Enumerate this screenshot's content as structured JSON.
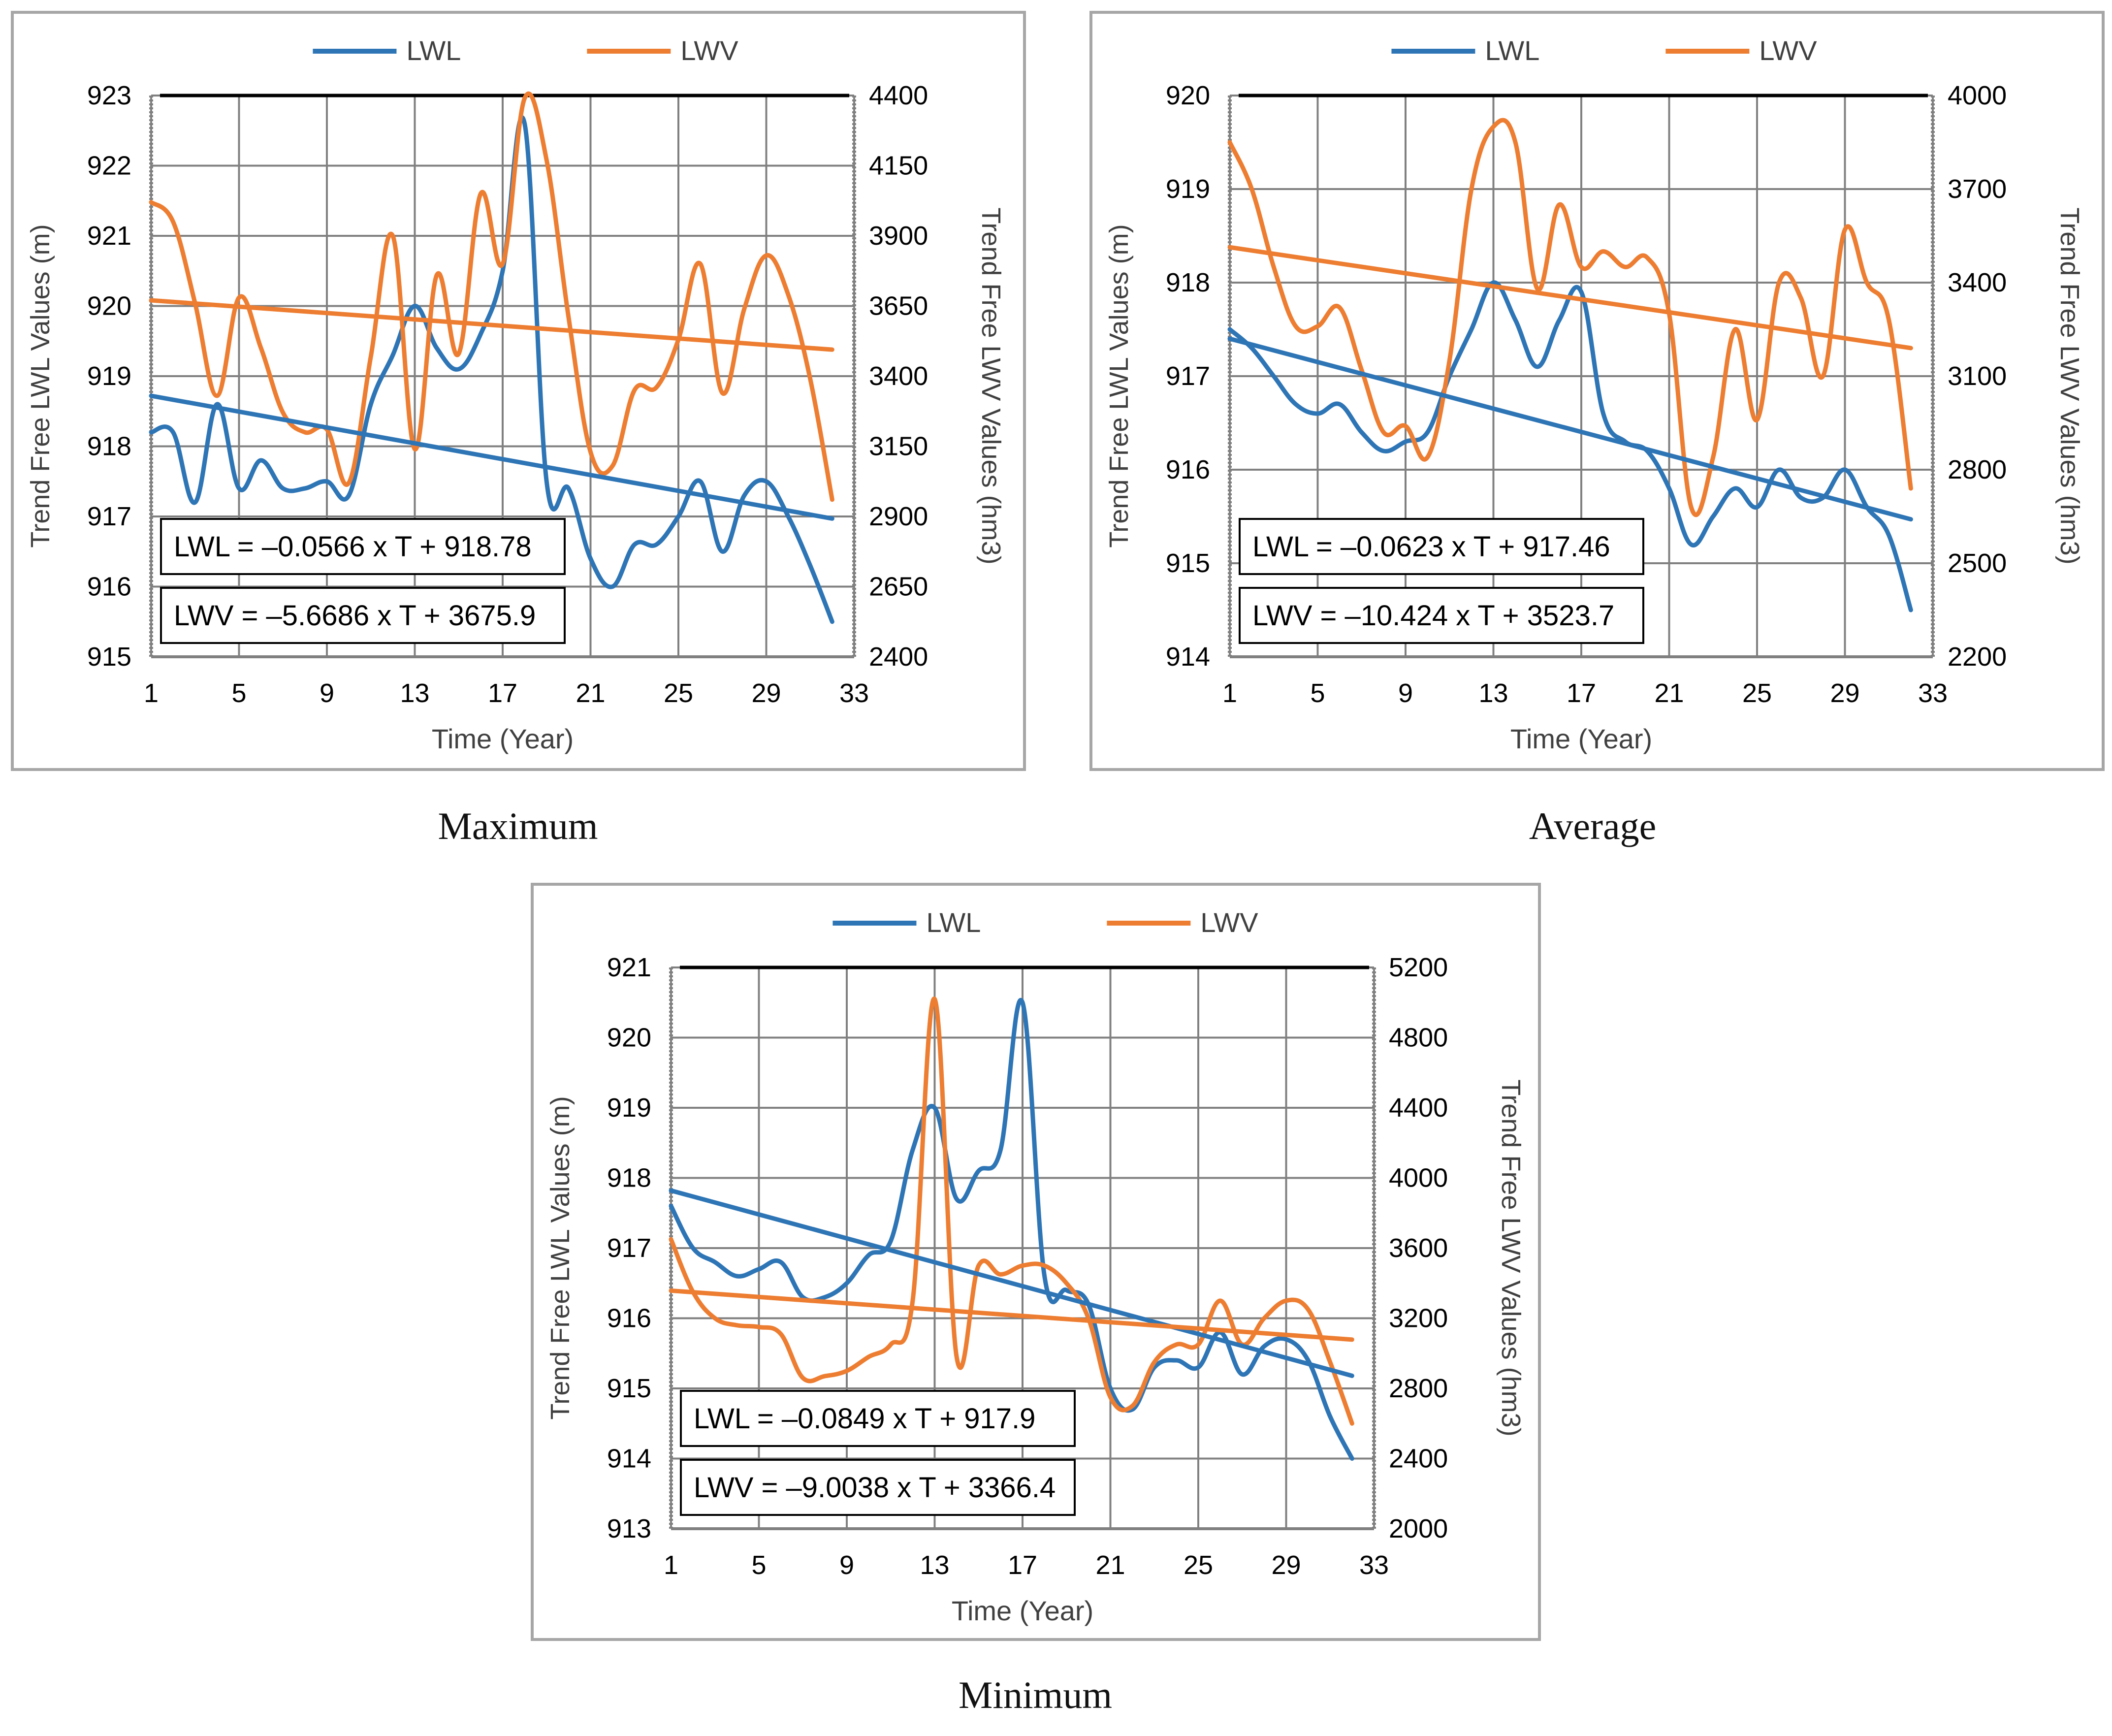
{
  "legend": {
    "lwl": "LWL",
    "lwv": "LWV"
  },
  "colors": {
    "lwl": "#2E75B6",
    "lwv": "#ED7D31",
    "grid": "#808080",
    "frame": "#A6A6A6",
    "text": "#404040"
  },
  "chart_data": [
    {
      "type": "line",
      "caption": "Maximum",
      "xlabel": "Time (Year)",
      "ylabel": "Trend Free LWL Values (m)",
      "y2label": "Trend Free LWV Values (hm3)",
      "xlim": [
        1,
        33
      ],
      "xticks": [
        1,
        5,
        9,
        13,
        17,
        21,
        25,
        29,
        33
      ],
      "ylim": [
        915,
        923
      ],
      "yticks": [
        915,
        916,
        917,
        918,
        919,
        920,
        921,
        922,
        923
      ],
      "y2lim": [
        2400,
        4400
      ],
      "y2ticks": [
        2400,
        2650,
        2900,
        3150,
        3400,
        3650,
        3900,
        4150,
        4400
      ],
      "equations": [
        "LWL = –0.0566 x T + 918.78",
        "LWV = –5.6686 x T + 3675.9"
      ],
      "series": [
        {
          "name": "LWL",
          "axis": "left",
          "x": [
            1,
            2,
            3,
            4,
            5,
            6,
            7,
            8,
            9,
            10,
            11,
            12,
            13,
            14,
            15,
            16,
            17,
            18,
            19,
            20,
            21,
            22,
            23,
            24,
            25,
            26,
            27,
            28,
            29,
            30,
            31,
            32
          ],
          "values": [
            918.2,
            918.2,
            917.2,
            918.6,
            917.4,
            917.8,
            917.4,
            917.4,
            917.5,
            917.3,
            918.6,
            919.3,
            920.0,
            919.4,
            919.1,
            919.6,
            920.5,
            922.6,
            917.5,
            917.4,
            916.4,
            916.0,
            916.6,
            916.6,
            917.0,
            917.5,
            916.5,
            917.3,
            917.5,
            917.0,
            916.3,
            915.5
          ]
        },
        {
          "name": "LWV",
          "axis": "right",
          "x": [
            1,
            2,
            3,
            4,
            5,
            6,
            7,
            8,
            9,
            10,
            11,
            12,
            13,
            14,
            15,
            16,
            17,
            18,
            19,
            20,
            21,
            22,
            23,
            24,
            25,
            26,
            27,
            28,
            29,
            30,
            31,
            32
          ],
          "values": [
            4020,
            3950,
            3660,
            3330,
            3680,
            3500,
            3270,
            3200,
            3210,
            3020,
            3470,
            3900,
            3140,
            3760,
            3480,
            4050,
            3800,
            4390,
            4170,
            3610,
            3130,
            3080,
            3350,
            3360,
            3530,
            3800,
            3340,
            3640,
            3830,
            3690,
            3390,
            2960
          ]
        },
        {
          "name": "LWL trend",
          "axis": "left",
          "x": [
            1,
            32
          ],
          "values": [
            918.72,
            916.97
          ]
        },
        {
          "name": "LWV trend",
          "axis": "right",
          "x": [
            1,
            32
          ],
          "values": [
            3670.2,
            3494.5
          ]
        }
      ]
    },
    {
      "type": "line",
      "caption": "Average",
      "xlabel": "Time (Year)",
      "ylabel": "Trend Free LWL Values  (m)",
      "y2label": "Trend Free LWV Values (hm3)",
      "xlim": [
        1,
        33
      ],
      "xticks": [
        1,
        5,
        9,
        13,
        17,
        21,
        25,
        29,
        33
      ],
      "ylim": [
        914,
        920
      ],
      "yticks": [
        914,
        915,
        916,
        917,
        918,
        919,
        920
      ],
      "y2lim": [
        2200,
        4000
      ],
      "y2ticks": [
        2200,
        2500,
        2800,
        3100,
        3400,
        3700,
        4000
      ],
      "equations": [
        "LWL = –0.0623 x T + 917.46",
        "LWV = –10.424 x T + 3523.7"
      ],
      "series": [
        {
          "name": "LWL",
          "axis": "left",
          "x": [
            1,
            2,
            3,
            4,
            5,
            6,
            7,
            8,
            9,
            10,
            11,
            12,
            13,
            14,
            15,
            16,
            17,
            18,
            19,
            20,
            21,
            22,
            23,
            24,
            25,
            26,
            27,
            28,
            29,
            30,
            31,
            32
          ],
          "values": [
            917.5,
            917.3,
            917.0,
            916.7,
            916.6,
            916.7,
            916.4,
            916.2,
            916.3,
            916.4,
            917.0,
            917.5,
            918.0,
            917.6,
            917.1,
            917.6,
            917.9,
            916.6,
            916.3,
            916.2,
            915.8,
            915.2,
            915.5,
            915.8,
            915.6,
            916.0,
            915.7,
            915.7,
            916.0,
            915.6,
            915.3,
            914.5
          ]
        },
        {
          "name": "LWV",
          "axis": "right",
          "x": [
            1,
            2,
            3,
            4,
            5,
            6,
            7,
            8,
            9,
            10,
            11,
            12,
            13,
            14,
            15,
            16,
            17,
            18,
            19,
            20,
            21,
            22,
            23,
            24,
            25,
            26,
            27,
            28,
            29,
            30,
            31,
            32
          ],
          "values": [
            3850,
            3700,
            3450,
            3260,
            3260,
            3320,
            3120,
            2920,
            2940,
            2840,
            3150,
            3700,
            3900,
            3850,
            3380,
            3650,
            3450,
            3500,
            3450,
            3480,
            3300,
            2680,
            2840,
            3250,
            2960,
            3400,
            3350,
            3100,
            3570,
            3400,
            3280,
            2740
          ]
        },
        {
          "name": "LWL trend",
          "axis": "left",
          "x": [
            1,
            32
          ],
          "values": [
            917.4,
            915.47
          ]
        },
        {
          "name": "LWV trend",
          "axis": "right",
          "x": [
            1,
            32
          ],
          "values": [
            3513.3,
            3190.1
          ]
        }
      ]
    },
    {
      "type": "line",
      "caption": "Minimum",
      "xlabel": "Time (Year)",
      "ylabel": "Trend Free LWL Values (m)",
      "y2label": "Trend Free LWV Values (hm3)",
      "xlim": [
        1,
        33
      ],
      "xticks": [
        1,
        5,
        9,
        13,
        17,
        21,
        25,
        29,
        33
      ],
      "ylim": [
        913,
        921
      ],
      "yticks": [
        913,
        914,
        915,
        916,
        917,
        918,
        919,
        920,
        921
      ],
      "y2lim": [
        2000,
        5200
      ],
      "y2ticks": [
        2000,
        2400,
        2800,
        3200,
        3600,
        4000,
        4400,
        4800,
        5200
      ],
      "equations": [
        "LWL = –0.0849 x T + 917.9",
        "LWV = –9.0038 x T + 3366.4"
      ],
      "series": [
        {
          "name": "LWL",
          "axis": "left",
          "x": [
            1,
            2,
            3,
            4,
            5,
            6,
            7,
            8,
            9,
            10,
            11,
            12,
            13,
            14,
            15,
            16,
            17,
            18,
            19,
            20,
            21,
            22,
            23,
            24,
            25,
            26,
            27,
            28,
            29,
            30,
            31,
            32
          ],
          "values": [
            917.6,
            917.0,
            916.8,
            916.6,
            916.7,
            916.8,
            916.3,
            916.3,
            916.5,
            916.9,
            917.1,
            918.4,
            919.0,
            917.7,
            918.1,
            918.4,
            920.5,
            916.6,
            916.4,
            916.2,
            915.0,
            914.7,
            915.3,
            915.4,
            915.3,
            915.8,
            915.2,
            915.6,
            915.7,
            915.4,
            914.6,
            914.0
          ]
        },
        {
          "name": "LWV",
          "axis": "right",
          "x": [
            1,
            2,
            3,
            4,
            5,
            6,
            7,
            8,
            9,
            10,
            11,
            12,
            13,
            14,
            15,
            16,
            17,
            18,
            19,
            20,
            21,
            22,
            23,
            24,
            25,
            26,
            27,
            28,
            29,
            30,
            31,
            32
          ],
          "values": [
            3650,
            3350,
            3200,
            3160,
            3150,
            3110,
            2860,
            2870,
            2900,
            2980,
            3050,
            3300,
            5020,
            2980,
            3500,
            3450,
            3500,
            3500,
            3400,
            3200,
            2750,
            2700,
            2950,
            3050,
            3050,
            3300,
            3050,
            3200,
            3300,
            3250,
            2950,
            2600
          ]
        },
        {
          "name": "LWL trend",
          "axis": "left",
          "x": [
            1,
            32
          ],
          "values": [
            917.82,
            915.18
          ]
        },
        {
          "name": "LWV trend",
          "axis": "right",
          "x": [
            1,
            32
          ],
          "values": [
            3357.4,
            3078.3
          ]
        }
      ]
    }
  ]
}
